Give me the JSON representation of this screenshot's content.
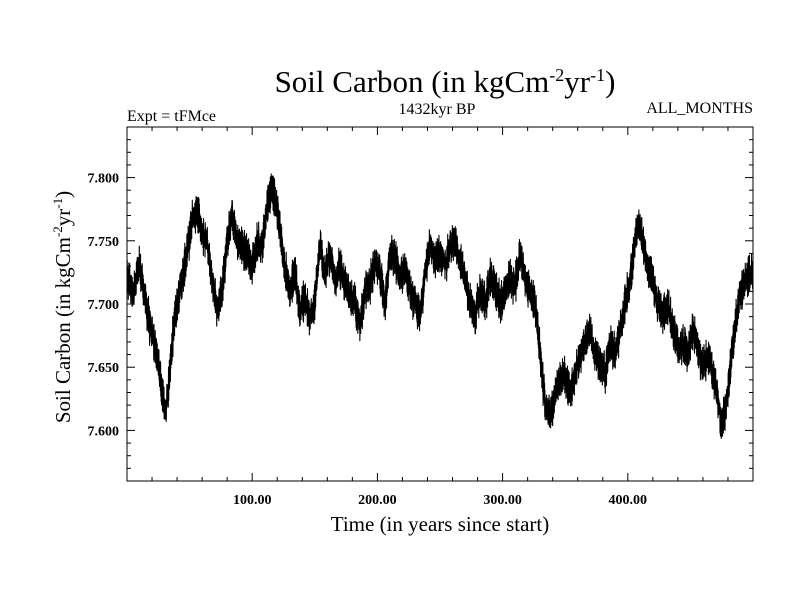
{
  "chart_data": {
    "type": "line",
    "title_main": "Soil Carbon (in kgCm",
    "title_exp1": "-2",
    "title_mid": "yr",
    "title_exp2": "-1",
    "title_end": ")",
    "experiment_label": "Expt = tFMce",
    "period_label": "1432kyr BP",
    "months_label": "ALL_MONTHS",
    "xlabel": "Time (in years since start)",
    "ylabel_main": "Soil Carbon (in kgCm",
    "ylabel_exp1": "-2",
    "ylabel_mid": "yr",
    "ylabel_exp2": "-1",
    "ylabel_end": ")",
    "xlim": [
      0,
      500
    ],
    "ylim": [
      7.56,
      7.84
    ],
    "x_ticks": [
      {
        "value": 100,
        "label": "100.00"
      },
      {
        "value": 200,
        "label": "200.00"
      },
      {
        "value": 300,
        "label": "300.00"
      },
      {
        "value": 400,
        "label": "400.00"
      }
    ],
    "y_ticks": [
      {
        "value": 7.6,
        "label": "7.600"
      },
      {
        "value": 7.65,
        "label": "7.650"
      },
      {
        "value": 7.7,
        "label": "7.700"
      },
      {
        "value": 7.75,
        "label": "7.750"
      },
      {
        "value": 7.8,
        "label": "7.800"
      }
    ],
    "series": [
      {
        "name": "Soil Carbon",
        "color": "#000000",
        "noise_amplitude": 0.013,
        "points": [
          [
            0,
            7.72
          ],
          [
            5,
            7.71
          ],
          [
            10,
            7.73
          ],
          [
            15,
            7.7
          ],
          [
            20,
            7.675
          ],
          [
            25,
            7.655
          ],
          [
            28,
            7.63
          ],
          [
            31,
            7.615
          ],
          [
            34,
            7.645
          ],
          [
            38,
            7.69
          ],
          [
            42,
            7.71
          ],
          [
            47,
            7.735
          ],
          [
            52,
            7.765
          ],
          [
            56,
            7.775
          ],
          [
            60,
            7.755
          ],
          [
            64,
            7.75
          ],
          [
            68,
            7.72
          ],
          [
            72,
            7.695
          ],
          [
            76,
            7.71
          ],
          [
            80,
            7.75
          ],
          [
            84,
            7.77
          ],
          [
            88,
            7.75
          ],
          [
            92,
            7.745
          ],
          [
            96,
            7.74
          ],
          [
            100,
            7.73
          ],
          [
            104,
            7.75
          ],
          [
            108,
            7.745
          ],
          [
            112,
            7.78
          ],
          [
            115,
            7.79
          ],
          [
            118,
            7.785
          ],
          [
            122,
            7.76
          ],
          [
            126,
            7.73
          ],
          [
            130,
            7.71
          ],
          [
            134,
            7.725
          ],
          [
            138,
            7.695
          ],
          [
            142,
            7.705
          ],
          [
            146,
            7.69
          ],
          [
            150,
            7.7
          ],
          [
            154,
            7.745
          ],
          [
            158,
            7.725
          ],
          [
            162,
            7.74
          ],
          [
            166,
            7.72
          ],
          [
            170,
            7.73
          ],
          [
            174,
            7.715
          ],
          [
            178,
            7.705
          ],
          [
            182,
            7.7
          ],
          [
            186,
            7.685
          ],
          [
            190,
            7.71
          ],
          [
            194,
            7.715
          ],
          [
            198,
            7.73
          ],
          [
            202,
            7.725
          ],
          [
            206,
            7.7
          ],
          [
            210,
            7.74
          ],
          [
            214,
            7.735
          ],
          [
            218,
            7.72
          ],
          [
            222,
            7.73
          ],
          [
            226,
            7.71
          ],
          [
            230,
            7.7
          ],
          [
            234,
            7.69
          ],
          [
            238,
            7.725
          ],
          [
            242,
            7.745
          ],
          [
            246,
            7.735
          ],
          [
            250,
            7.74
          ],
          [
            254,
            7.73
          ],
          [
            258,
            7.745
          ],
          [
            262,
            7.75
          ],
          [
            266,
            7.735
          ],
          [
            270,
            7.72
          ],
          [
            274,
            7.7
          ],
          [
            278,
            7.69
          ],
          [
            282,
            7.71
          ],
          [
            286,
            7.7
          ],
          [
            290,
            7.72
          ],
          [
            294,
            7.715
          ],
          [
            298,
            7.7
          ],
          [
            302,
            7.71
          ],
          [
            306,
            7.72
          ],
          [
            310,
            7.715
          ],
          [
            314,
            7.74
          ],
          [
            318,
            7.72
          ],
          [
            322,
            7.71
          ],
          [
            326,
            7.7
          ],
          [
            330,
            7.66
          ],
          [
            334,
            7.62
          ],
          [
            338,
            7.61
          ],
          [
            342,
            7.63
          ],
          [
            346,
            7.64
          ],
          [
            350,
            7.645
          ],
          [
            354,
            7.63
          ],
          [
            358,
            7.645
          ],
          [
            362,
            7.66
          ],
          [
            366,
            7.67
          ],
          [
            370,
            7.68
          ],
          [
            374,
            7.66
          ],
          [
            378,
            7.65
          ],
          [
            382,
            7.645
          ],
          [
            386,
            7.67
          ],
          [
            390,
            7.66
          ],
          [
            394,
            7.68
          ],
          [
            398,
            7.7
          ],
          [
            402,
            7.72
          ],
          [
            406,
            7.75
          ],
          [
            409,
            7.765
          ],
          [
            412,
            7.75
          ],
          [
            416,
            7.73
          ],
          [
            420,
            7.72
          ],
          [
            424,
            7.7
          ],
          [
            428,
            7.69
          ],
          [
            432,
            7.7
          ],
          [
            436,
            7.68
          ],
          [
            440,
            7.665
          ],
          [
            444,
            7.67
          ],
          [
            448,
            7.66
          ],
          [
            452,
            7.68
          ],
          [
            456,
            7.665
          ],
          [
            460,
            7.65
          ],
          [
            464,
            7.66
          ],
          [
            468,
            7.645
          ],
          [
            472,
            7.625
          ],
          [
            475,
            7.605
          ],
          [
            478,
            7.615
          ],
          [
            482,
            7.65
          ],
          [
            486,
            7.685
          ],
          [
            490,
            7.71
          ],
          [
            494,
            7.72
          ],
          [
            500,
            7.725
          ]
        ]
      }
    ]
  }
}
